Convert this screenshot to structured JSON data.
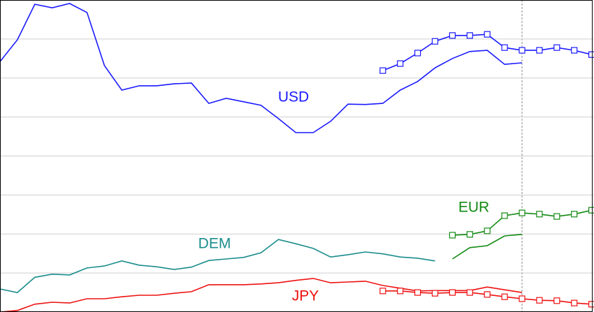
{
  "chart_data": {
    "type": "line",
    "x": [
      0,
      1,
      2,
      3,
      4,
      5,
      6,
      7,
      8,
      9,
      10,
      11,
      12,
      13,
      14,
      15,
      16,
      17,
      18,
      19,
      20,
      21,
      22,
      23,
      24,
      25,
      26,
      27,
      28,
      29,
      30,
      31,
      32,
      33,
      34
    ],
    "xlim": [
      0,
      34
    ],
    "ylim": [
      0,
      8
    ],
    "yticks": [
      1,
      2,
      3,
      4,
      5,
      6,
      7
    ],
    "grid": true,
    "series": [
      {
        "name": "USD",
        "color": "#1a1aff",
        "values": [
          6.42,
          6.98,
          7.89,
          7.8,
          7.91,
          7.68,
          6.32,
          5.69,
          5.8,
          5.8,
          5.85,
          5.87,
          5.35,
          5.48,
          5.39,
          5.3,
          4.96,
          4.6,
          4.6,
          4.89,
          5.33,
          5.32,
          5.35,
          5.69,
          5.91,
          6.26,
          6.5,
          6.68,
          6.71,
          6.35,
          6.39,
          null,
          null,
          null,
          null
        ],
        "forecast_values": [
          null,
          null,
          null,
          null,
          null,
          null,
          null,
          null,
          null,
          null,
          null,
          null,
          null,
          null,
          null,
          null,
          null,
          null,
          null,
          null,
          null,
          null,
          6.19,
          6.37,
          6.64,
          6.94,
          7.09,
          7.09,
          7.12,
          6.78,
          6.71,
          6.71,
          6.78,
          6.71,
          6.6
        ]
      },
      {
        "name": "DEM",
        "color": "#1a8c8c",
        "values": [
          0.59,
          0.5,
          0.89,
          0.97,
          0.95,
          1.13,
          1.18,
          1.31,
          1.2,
          1.16,
          1.09,
          1.15,
          1.32,
          1.36,
          1.4,
          1.52,
          1.86,
          1.75,
          1.63,
          1.41,
          1.47,
          1.54,
          1.49,
          1.41,
          1.38,
          1.31,
          null,
          null,
          null,
          null,
          null,
          null,
          null,
          null,
          null
        ],
        "forecast_values": [
          null,
          null,
          null,
          null,
          null,
          null,
          null,
          null,
          null,
          null,
          null,
          null,
          null,
          null,
          null,
          null,
          null,
          null,
          null,
          null,
          null,
          null,
          null,
          null,
          null,
          null,
          null,
          null,
          null,
          null,
          null,
          null,
          null,
          null,
          null
        ]
      },
      {
        "name": "EUR",
        "color": "#138a13",
        "values": [
          null,
          null,
          null,
          null,
          null,
          null,
          null,
          null,
          null,
          null,
          null,
          null,
          null,
          null,
          null,
          null,
          null,
          null,
          null,
          null,
          null,
          null,
          null,
          null,
          null,
          null,
          1.36,
          1.65,
          1.7,
          1.95,
          1.99,
          null,
          null,
          null,
          null
        ],
        "forecast_values": [
          null,
          null,
          null,
          null,
          null,
          null,
          null,
          null,
          null,
          null,
          null,
          null,
          null,
          null,
          null,
          null,
          null,
          null,
          null,
          null,
          null,
          null,
          null,
          null,
          null,
          null,
          1.97,
          1.99,
          2.08,
          2.47,
          2.54,
          2.51,
          2.45,
          2.51,
          2.61
        ]
      },
      {
        "name": "JPY",
        "color": "#ee1111",
        "values": [
          0,
          0.04,
          0.2,
          0.25,
          0.23,
          0.34,
          0.34,
          0.39,
          0.43,
          0.43,
          0.48,
          0.52,
          0.7,
          0.7,
          0.7,
          0.72,
          0.75,
          0.81,
          0.86,
          0.75,
          0.77,
          0.79,
          0.68,
          0.61,
          0.54,
          0.55,
          0.55,
          0.55,
          0.64,
          0.57,
          0.5,
          null,
          null,
          null,
          null
        ],
        "forecast_values": [
          null,
          null,
          null,
          null,
          null,
          null,
          null,
          null,
          null,
          null,
          null,
          null,
          null,
          null,
          null,
          null,
          null,
          null,
          null,
          null,
          null,
          null,
          0.54,
          0.54,
          0.5,
          0.48,
          0.5,
          0.5,
          0.45,
          0.39,
          0.34,
          0.3,
          0.29,
          0.23,
          0.2
        ]
      }
    ]
  }
}
